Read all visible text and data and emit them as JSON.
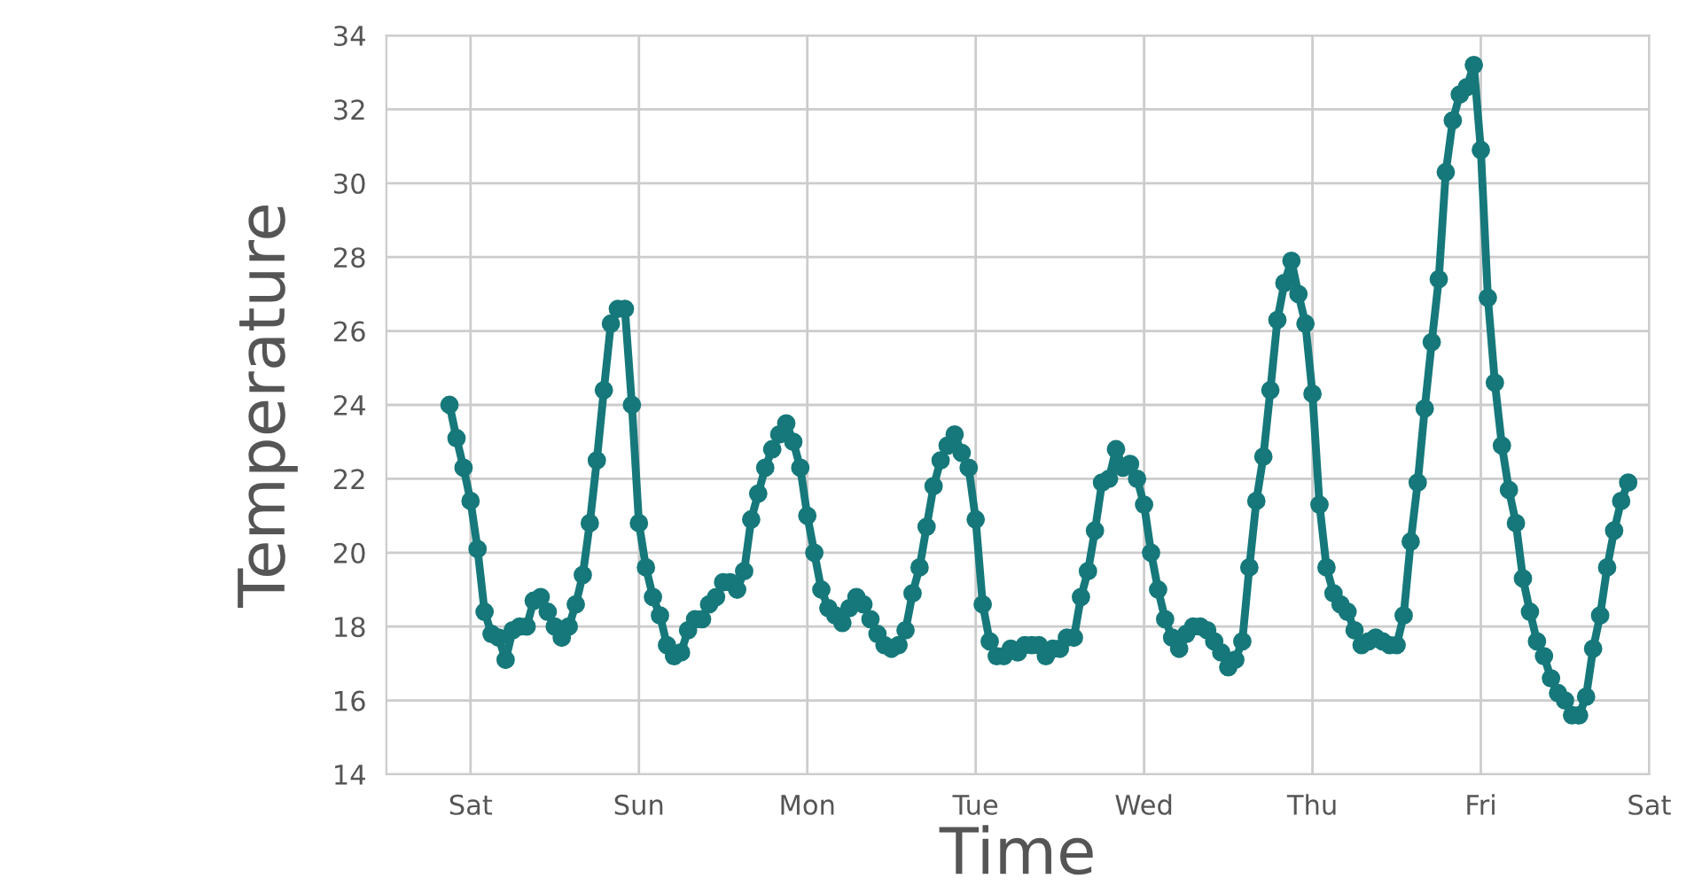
{
  "chart_data": {
    "type": "line",
    "xlabel": "Time",
    "ylabel": "Temperature",
    "categories": [
      null,
      null,
      null,
      "Sat",
      null,
      null,
      null,
      null,
      null,
      null,
      null,
      null,
      null,
      null,
      null,
      null,
      null,
      null,
      null,
      null,
      null,
      null,
      null,
      null,
      null,
      null,
      null,
      "Sun",
      null,
      null,
      null,
      null,
      null,
      null,
      null,
      null,
      null,
      null,
      null,
      null,
      null,
      null,
      null,
      null,
      null,
      null,
      null,
      null,
      null,
      null,
      null,
      "Mon",
      null,
      null,
      null,
      null,
      null,
      null,
      null,
      null,
      null,
      null,
      null,
      null,
      null,
      null,
      null,
      null,
      null,
      null,
      null,
      null,
      null,
      null,
      null,
      "Tue",
      null,
      null,
      null,
      null,
      null,
      null,
      null,
      null,
      null,
      null,
      null,
      null,
      null,
      null,
      null,
      null,
      null,
      null,
      null,
      null,
      null,
      null,
      null,
      "Wed",
      null,
      null,
      null,
      null,
      null,
      null,
      null,
      null,
      null,
      null,
      null,
      null,
      null,
      null,
      null,
      null,
      null,
      null,
      null,
      null,
      null,
      null,
      null,
      "Thu",
      null,
      null,
      null,
      null,
      null,
      null,
      null,
      null,
      null,
      null,
      null,
      null,
      null,
      null,
      null,
      null,
      null,
      null,
      null,
      null,
      null,
      null,
      null,
      "Fri",
      null,
      null,
      null,
      null,
      null,
      null,
      null,
      null,
      null,
      null,
      null,
      null,
      null,
      null,
      null,
      null,
      null,
      null,
      null,
      null,
      null,
      null,
      null,
      "Sat"
    ],
    "series": [
      {
        "color": "#16787a",
        "values": [
          24.0,
          23.1,
          22.3,
          21.4,
          20.1,
          18.4,
          17.8,
          17.7,
          17.1,
          17.9,
          18.0,
          18.0,
          18.7,
          18.8,
          18.4,
          18.0,
          17.7,
          18.0,
          18.6,
          19.4,
          20.8,
          22.5,
          24.4,
          26.2,
          26.6,
          26.6,
          24.0,
          20.8,
          19.6,
          18.8,
          18.3,
          17.5,
          17.2,
          17.3,
          17.9,
          18.2,
          18.2,
          18.6,
          18.8,
          19.2,
          19.2,
          19.0,
          19.5,
          20.9,
          21.6,
          22.3,
          22.8,
          23.2,
          23.5,
          23.0,
          22.3,
          21.0,
          20.0,
          19.0,
          18.5,
          18.3,
          18.1,
          18.5,
          18.8,
          18.6,
          18.2,
          17.8,
          17.5,
          17.4,
          17.5,
          17.9,
          18.9,
          19.6,
          20.7,
          21.8,
          22.5,
          22.9,
          23.2,
          22.7,
          22.3,
          20.9,
          18.6,
          17.6,
          17.2,
          17.2,
          17.4,
          17.3,
          17.5,
          17.5,
          17.5,
          17.2,
          17.4,
          17.4,
          17.7,
          17.7,
          18.8,
          19.5,
          20.6,
          21.9,
          22.0,
          22.8,
          22.3,
          22.4,
          22.0,
          21.3,
          20.0,
          19.0,
          18.2,
          17.7,
          17.4,
          17.8,
          18.0,
          18.0,
          17.9,
          17.6,
          17.3,
          16.9,
          17.1,
          17.6,
          19.6,
          21.4,
          22.6,
          24.4,
          26.3,
          27.3,
          27.9,
          27.0,
          26.2,
          24.3,
          21.3,
          19.6,
          18.9,
          18.6,
          18.4,
          17.9,
          17.5,
          17.6,
          17.7,
          17.6,
          17.5,
          17.5,
          18.3,
          20.3,
          21.9,
          23.9,
          25.7,
          27.4,
          30.3,
          31.7,
          32.4,
          32.6,
          33.2,
          30.9,
          26.9,
          24.6,
          22.9,
          21.7,
          20.8,
          19.3,
          18.4,
          17.6,
          17.2,
          16.6,
          16.2,
          16.0,
          15.6,
          15.6,
          16.1,
          17.4,
          18.3,
          19.6,
          20.6,
          21.4,
          21.9,
          null,
          null,
          null
        ]
      }
    ],
    "ylim": [
      14,
      34
    ],
    "yticks": [
      14,
      16,
      18,
      20,
      22,
      24,
      26,
      28,
      30,
      32,
      34
    ],
    "grid": true,
    "legend": false,
    "marker": "circle",
    "line_style": "solid"
  }
}
